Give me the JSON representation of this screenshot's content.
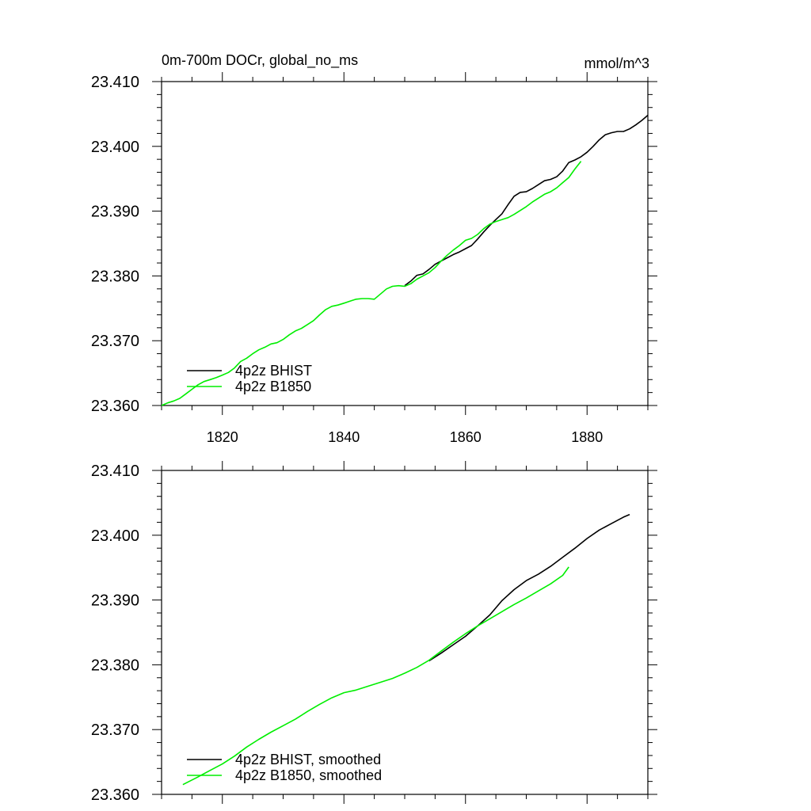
{
  "title": "0m-700m DOCr, global_no_ms",
  "units": "mmol/m^3",
  "colors": {
    "bhist": "#000000",
    "b1850": "#00ee00",
    "axis": "#000000"
  },
  "chart_data": [
    {
      "type": "line",
      "title": "0m-700m DOCr, global_no_ms",
      "units": "mmol/m^3",
      "xlim": [
        1810,
        1890
      ],
      "ylim": [
        23.36,
        23.41
      ],
      "xticks": [
        1820,
        1840,
        1860,
        1880
      ],
      "xtick_labels": [
        "1820",
        "1840",
        "1860",
        "1880"
      ],
      "yticks": [
        23.36,
        23.37,
        23.38,
        23.39,
        23.4,
        23.41
      ],
      "ytick_labels": [
        "23.360",
        "23.370",
        "23.380",
        "23.390",
        "23.400",
        "23.410"
      ],
      "legend_position": "bottom-left",
      "grid": false,
      "series": [
        {
          "name": "4p2z BHIST",
          "color": "#000000",
          "x": [
            1850,
            1851,
            1852,
            1853,
            1854,
            1855,
            1856,
            1857,
            1858,
            1859,
            1860,
            1861,
            1862,
            1863,
            1864,
            1865,
            1866,
            1867,
            1868,
            1869,
            1870,
            1871,
            1872,
            1873,
            1874,
            1875,
            1876,
            1877,
            1878,
            1879,
            1880,
            1881,
            1882,
            1883,
            1884,
            1885,
            1886,
            1887,
            1888,
            1889,
            1890
          ],
          "y": [
            23.3785,
            23.3792,
            23.3801,
            23.3803,
            23.381,
            23.3818,
            23.3823,
            23.3828,
            23.3833,
            23.3837,
            23.3842,
            23.3847,
            23.3857,
            23.3868,
            23.3878,
            23.3887,
            23.3896,
            23.391,
            23.3923,
            23.3929,
            23.393,
            23.3935,
            23.3941,
            23.3947,
            23.3949,
            23.3953,
            23.3962,
            23.3975,
            23.3979,
            23.3984,
            23.3991,
            23.4,
            23.401,
            23.4018,
            23.4021,
            23.4023,
            23.4023,
            23.4027,
            23.4033,
            23.404,
            23.4048
          ]
        },
        {
          "name": "4p2z B1850",
          "color": "#00ee00",
          "x": [
            1810,
            1811,
            1812,
            1813,
            1814,
            1815,
            1816,
            1817,
            1818,
            1819,
            1820,
            1821,
            1822,
            1823,
            1824,
            1825,
            1826,
            1827,
            1828,
            1829,
            1830,
            1831,
            1832,
            1833,
            1834,
            1835,
            1836,
            1837,
            1838,
            1839,
            1840,
            1841,
            1842,
            1843,
            1844,
            1845,
            1846,
            1847,
            1848,
            1849,
            1850,
            1851,
            1852,
            1853,
            1854,
            1855,
            1856,
            1857,
            1858,
            1859,
            1860,
            1861,
            1862,
            1863,
            1864,
            1865,
            1866,
            1867,
            1868,
            1869,
            1870,
            1871,
            1872,
            1873,
            1874,
            1875,
            1876,
            1877,
            1878,
            1879
          ],
          "y": [
            23.36,
            23.3604,
            23.3607,
            23.3611,
            23.3618,
            23.3625,
            23.3632,
            23.3637,
            23.364,
            23.3643,
            23.3647,
            23.3651,
            23.3658,
            23.3668,
            23.3673,
            23.368,
            23.3686,
            23.369,
            23.3695,
            23.3697,
            23.3702,
            23.3709,
            23.3715,
            23.3719,
            23.3725,
            23.3731,
            23.374,
            23.3748,
            23.3753,
            23.3755,
            23.3758,
            23.3761,
            23.3764,
            23.3765,
            23.3765,
            23.3764,
            23.3772,
            23.378,
            23.3784,
            23.3785,
            23.3784,
            23.3788,
            23.3795,
            23.38,
            23.3805,
            23.3813,
            23.3823,
            23.3832,
            23.384,
            23.3847,
            23.3855,
            23.3858,
            23.3864,
            23.3873,
            23.388,
            23.3884,
            23.3887,
            23.389,
            23.3895,
            23.3901,
            23.3907,
            23.3914,
            23.392,
            23.3926,
            23.393,
            23.3936,
            23.3944,
            23.3952,
            23.3965,
            23.3977
          ]
        }
      ]
    },
    {
      "type": "line",
      "xlim": [
        1810,
        1890
      ],
      "ylim": [
        23.36,
        23.41
      ],
      "xticks": [
        1820,
        1840,
        1860,
        1880
      ],
      "yticks": [
        23.36,
        23.37,
        23.38,
        23.39,
        23.4,
        23.41
      ],
      "ytick_labels": [
        "23.360",
        "23.370",
        "23.380",
        "23.390",
        "23.400",
        "23.410"
      ],
      "legend_position": "bottom-left",
      "grid": false,
      "series": [
        {
          "name": "4p2z BHIST, smoothed",
          "color": "#000000",
          "x": [
            1854,
            1856,
            1858,
            1860,
            1862,
            1864,
            1866,
            1868,
            1870,
            1872,
            1874,
            1876,
            1878,
            1880,
            1882,
            1884,
            1886,
            1887
          ],
          "y": [
            23.3806,
            23.3818,
            23.3831,
            23.3844,
            23.386,
            23.3877,
            23.3899,
            23.3916,
            23.393,
            23.394,
            23.3952,
            23.3966,
            23.398,
            23.3995,
            23.4008,
            23.4018,
            23.4028,
            23.4032
          ]
        },
        {
          "name": "4p2z B1850, smoothed",
          "color": "#00ee00",
          "x": [
            1813.5,
            1816,
            1818,
            1820,
            1822,
            1824,
            1826,
            1828,
            1830,
            1832,
            1834,
            1836,
            1838,
            1840,
            1842,
            1844,
            1846,
            1848,
            1850,
            1852,
            1854,
            1856,
            1858,
            1860,
            1862,
            1864,
            1866,
            1868,
            1870,
            1872,
            1874,
            1876,
            1877
          ],
          "y": [
            23.3615,
            23.3627,
            23.3637,
            23.3647,
            23.3659,
            23.3673,
            23.3685,
            23.3696,
            23.3706,
            23.3716,
            23.3728,
            23.3739,
            23.3749,
            23.3757,
            23.3761,
            23.3767,
            23.3773,
            23.3779,
            23.3787,
            23.3796,
            23.3807,
            23.3821,
            23.3835,
            23.3848,
            23.386,
            23.3871,
            23.3882,
            23.3893,
            23.3903,
            23.3914,
            23.3925,
            23.3938,
            23.3951
          ]
        }
      ]
    }
  ]
}
